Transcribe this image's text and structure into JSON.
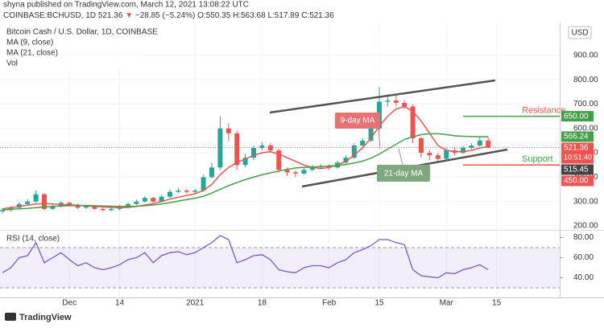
{
  "header": {
    "publisher": "shyna published on TradingView.com, March 12, 2021 13:08:22 UTC",
    "symbol": "COINBASE:BCHUSD, 1D",
    "last": "521.36",
    "direction": "▼",
    "change": "−28.85 (−5.24%)",
    "ohlc": [
      "O:550.35",
      "H:563.68",
      "L:517.89",
      "C:521.36"
    ]
  },
  "footer": {
    "brand": "TradingView"
  },
  "chart_data": {
    "type": "candlestick",
    "title": "Bitcoin Cash / U.S. Dollar, 1D, COINBASE",
    "currency": "USD",
    "volume_label": "Vol",
    "categories": [
      null,
      null,
      null,
      null,
      null,
      null,
      null,
      null,
      "Dec",
      null,
      null,
      null,
      null,
      null,
      "14",
      null,
      null,
      null,
      null,
      null,
      null,
      null,
      null,
      "2021",
      null,
      null,
      null,
      null,
      null,
      null,
      null,
      "18",
      null,
      null,
      null,
      null,
      null,
      null,
      null,
      "Feb",
      null,
      null,
      null,
      null,
      null,
      "15",
      null,
      null,
      null,
      null,
      null,
      null,
      null,
      "Mar",
      null,
      null,
      null,
      null,
      null,
      "15",
      null,
      null,
      null,
      null,
      null,
      null,
      null
    ],
    "open": [
      260,
      265,
      275,
      290,
      300,
      330,
      270,
      280,
      295,
      285,
      275,
      280,
      270,
      265,
      270,
      278,
      290,
      300,
      315,
      300,
      320,
      340,
      345,
      340,
      345,
      400,
      440,
      600,
      580,
      450,
      480,
      520,
      530,
      510,
      430,
      420,
      415,
      430,
      440,
      445,
      440,
      460,
      480,
      530,
      550,
      600,
      710,
      715,
      705,
      690,
      560,
      500,
      490,
      475,
      510,
      500,
      520,
      530,
      550.35,
      null,
      null,
      null,
      null,
      null,
      null,
      null,
      null
    ],
    "high": [
      272,
      282,
      298,
      310,
      345,
      335,
      288,
      302,
      300,
      292,
      285,
      285,
      275,
      276,
      285,
      296,
      308,
      322,
      320,
      328,
      350,
      355,
      352,
      352,
      410,
      460,
      650,
      620,
      590,
      495,
      530,
      545,
      540,
      515,
      440,
      428,
      438,
      450,
      455,
      452,
      468,
      490,
      540,
      560,
      615,
      770,
      740,
      740,
      715,
      700,
      565,
      510,
      500,
      520,
      520,
      528,
      540,
      565,
      563.68,
      null,
      null,
      null,
      null,
      null,
      null,
      null,
      null
    ],
    "low": [
      252,
      258,
      270,
      285,
      295,
      262,
      265,
      275,
      280,
      270,
      270,
      265,
      258,
      260,
      265,
      272,
      285,
      295,
      295,
      296,
      315,
      335,
      332,
      335,
      340,
      395,
      430,
      550,
      430,
      440,
      470,
      510,
      500,
      420,
      405,
      400,
      410,
      425,
      432,
      430,
      435,
      455,
      475,
      525,
      545,
      590,
      690,
      690,
      680,
      540,
      480,
      470,
      460,
      470,
      490,
      495,
      515,
      525,
      517.89,
      null,
      null,
      null,
      null,
      null,
      null,
      null,
      null
    ],
    "close": [
      265,
      275,
      290,
      300,
      330,
      270,
      280,
      295,
      285,
      275,
      280,
      270,
      265,
      270,
      278,
      290,
      300,
      315,
      300,
      320,
      340,
      345,
      340,
      345,
      400,
      440,
      600,
      580,
      450,
      480,
      520,
      530,
      510,
      430,
      420,
      415,
      430,
      440,
      445,
      440,
      460,
      480,
      530,
      550,
      600,
      710,
      715,
      705,
      690,
      560,
      500,
      490,
      475,
      510,
      500,
      520,
      530,
      550,
      521.36,
      null,
      null,
      null,
      null,
      null,
      null,
      null,
      null
    ],
    "up_color": "#26a69a",
    "down_color": "#ef5350",
    "series": [
      {
        "name": "MA (9, close)",
        "color": "#ef5350",
        "values": [
          270,
          275,
          280,
          285,
          290,
          292,
          290,
          288,
          287,
          285,
          282,
          280,
          278,
          276,
          275,
          276,
          280,
          286,
          292,
          300,
          310,
          318,
          325,
          332,
          345,
          370,
          410,
          440,
          460,
          475,
          490,
          500,
          505,
          495,
          480,
          465,
          450,
          440,
          435,
          440,
          450,
          465,
          490,
          520,
          560,
          610,
          650,
          680,
          690,
          670,
          630,
          580,
          530,
          510,
          505,
          505,
          510,
          520,
          525,
          null,
          null,
          null,
          null,
          null,
          null,
          null,
          null
        ]
      },
      {
        "name": "MA (21, close)",
        "color": "#43a047",
        "values": [
          265,
          268,
          270,
          272,
          275,
          278,
          280,
          282,
          283,
          284,
          284,
          283,
          282,
          281,
          280,
          280,
          281,
          283,
          286,
          290,
          296,
          302,
          308,
          314,
          322,
          335,
          350,
          365,
          378,
          390,
          400,
          410,
          418,
          425,
          432,
          438,
          440,
          442,
          444,
          446,
          448,
          452,
          458,
          466,
          478,
          495,
          515,
          535,
          555,
          565,
          575,
          578,
          578,
          575,
          570,
          568,
          567,
          566,
          566.24,
          null,
          null,
          null,
          null,
          null,
          null,
          null,
          null
        ]
      }
    ],
    "ylim": [
      187,
      1028
    ],
    "yticks": [
      {
        "value": 200,
        "label": "200.00"
      },
      {
        "value": 300,
        "label": "300.00"
      },
      {
        "value": 400,
        "label": "400.00"
      },
      {
        "value": 500,
        "label": "500.00"
      },
      {
        "value": 600,
        "label": "600.00"
      },
      {
        "value": 700,
        "label": "700.00"
      },
      {
        "value": 800,
        "label": "800.00"
      },
      {
        "value": 900,
        "label": "900.00"
      }
    ],
    "grid": true,
    "price_labels": [
      {
        "value": 650,
        "label": "650.00",
        "color": "#43a047"
      },
      {
        "value": 566.24,
        "label": "566.24",
        "color": "#43a047"
      },
      {
        "value": 521.36,
        "label": "521.36",
        "sub": "10:51:40",
        "color": "#ef5350"
      },
      {
        "value": 515.45,
        "label": "515.45",
        "color": "#444444"
      },
      {
        "value": 450,
        "label": "450.00",
        "color": "#ef5350"
      }
    ],
    "levels": [
      {
        "text": "Resistance",
        "value": 650,
        "color": "#43a047",
        "text_color": "#ef5350"
      },
      {
        "text": "Support",
        "value": 450,
        "color": "#ef5350",
        "text_color": "#43a047"
      }
    ],
    "callouts": [
      {
        "text": "9-day MA",
        "color": "#e57373"
      },
      {
        "text": "21-day MA",
        "color": "#7fa87f"
      }
    ],
    "rsi": {
      "name": "RSI (14, close)",
      "color": "#7e57c2",
      "values": [
        45,
        50,
        60,
        62,
        75,
        55,
        60,
        65,
        58,
        52,
        55,
        50,
        48,
        50,
        53,
        58,
        60,
        65,
        55,
        62,
        65,
        66,
        63,
        65,
        70,
        75,
        82,
        78,
        55,
        58,
        62,
        63,
        58,
        48,
        46,
        45,
        50,
        52,
        52,
        50,
        55,
        58,
        65,
        68,
        72,
        78,
        78,
        75,
        73,
        48,
        42,
        41,
        40,
        45,
        44,
        48,
        50,
        53,
        48,
        null,
        null,
        null,
        null,
        null,
        null,
        null,
        null
      ],
      "ylim": [
        22,
        86
      ],
      "yticks": [
        {
          "value": 40,
          "label": "40.00"
        },
        {
          "value": 60,
          "label": "60.00"
        },
        {
          "value": 80,
          "label": "80.00"
        }
      ],
      "bands": [
        30,
        70
      ]
    }
  }
}
